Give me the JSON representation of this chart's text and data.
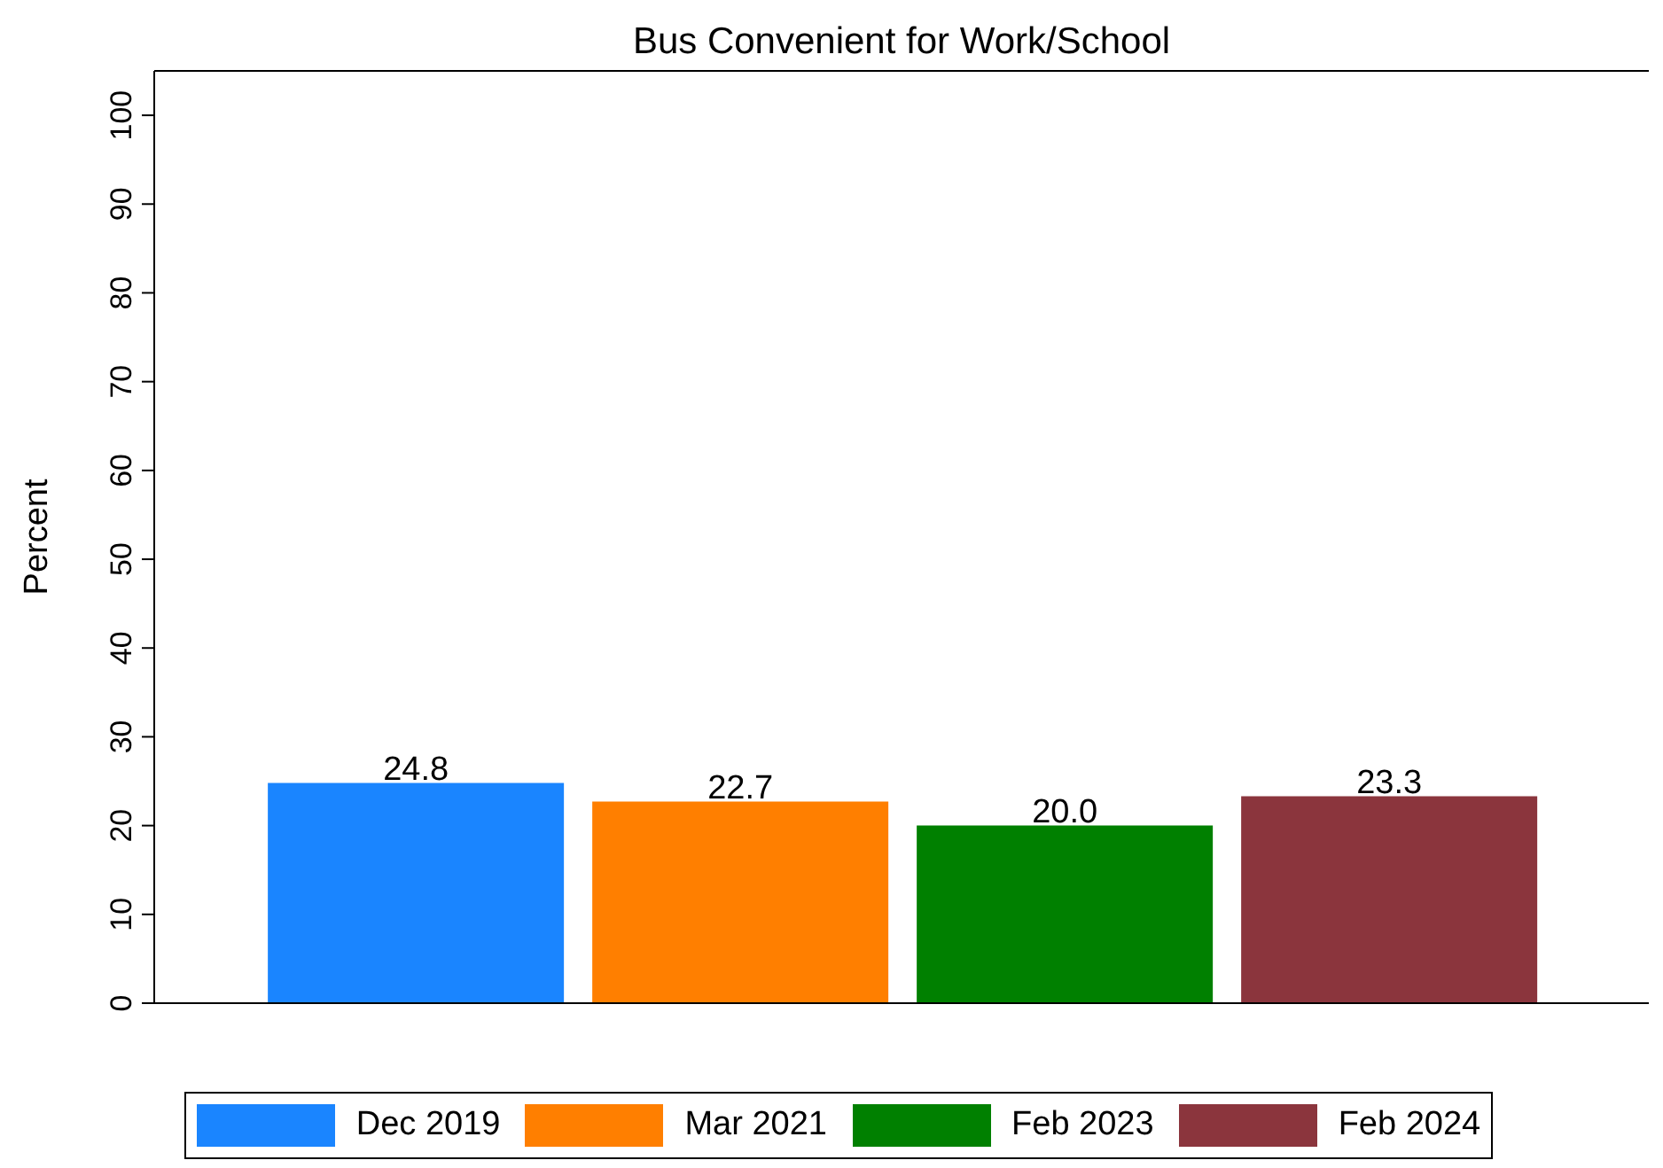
{
  "chart_data": {
    "type": "bar",
    "title": "Bus Convenient for Work/School",
    "ylabel": "Percent",
    "categories": [
      null
    ],
    "series": [
      {
        "name": "Dec 2019",
        "color": "#1a85ff",
        "values": [
          24.8
        ],
        "value_labels": [
          "24.8"
        ]
      },
      {
        "name": "Mar 2021",
        "color": "#ff7f00",
        "values": [
          22.7
        ],
        "value_labels": [
          "22.7"
        ]
      },
      {
        "name": "Feb 2023",
        "color": "#008000",
        "values": [
          20.0
        ],
        "value_labels": [
          "20.0"
        ]
      },
      {
        "name": "Feb 2024",
        "color": "#8b353d",
        "values": [
          23.3
        ],
        "value_labels": [
          "23.3"
        ]
      }
    ],
    "ylim": [
      0,
      105
    ],
    "yticks": [
      0,
      10,
      20,
      30,
      40,
      50,
      60,
      70,
      80,
      90,
      100
    ],
    "legend": "bottom"
  }
}
